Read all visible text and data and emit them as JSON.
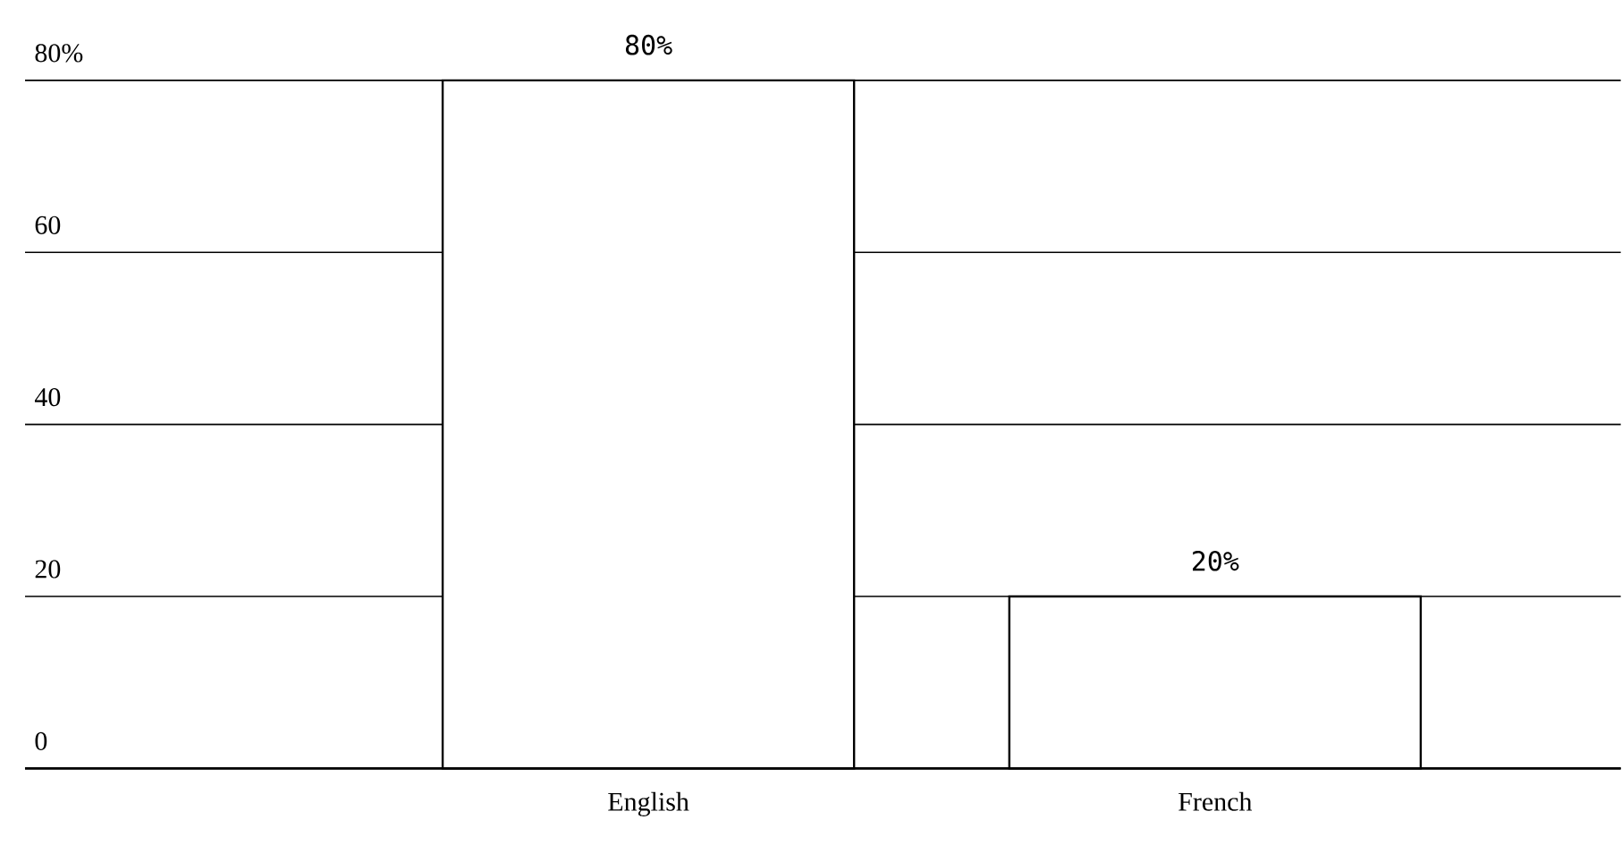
{
  "chart_data": {
    "type": "bar",
    "categories": [
      "English",
      "French"
    ],
    "values": [
      80,
      20
    ],
    "value_labels": [
      "80%",
      "20%"
    ],
    "color": "#ffffff",
    "ylim": [
      0,
      80
    ],
    "yticks": [
      0,
      20,
      40,
      60,
      {
        "value": 80,
        "label": "80%"
      }
    ],
    "grid": "y"
  }
}
